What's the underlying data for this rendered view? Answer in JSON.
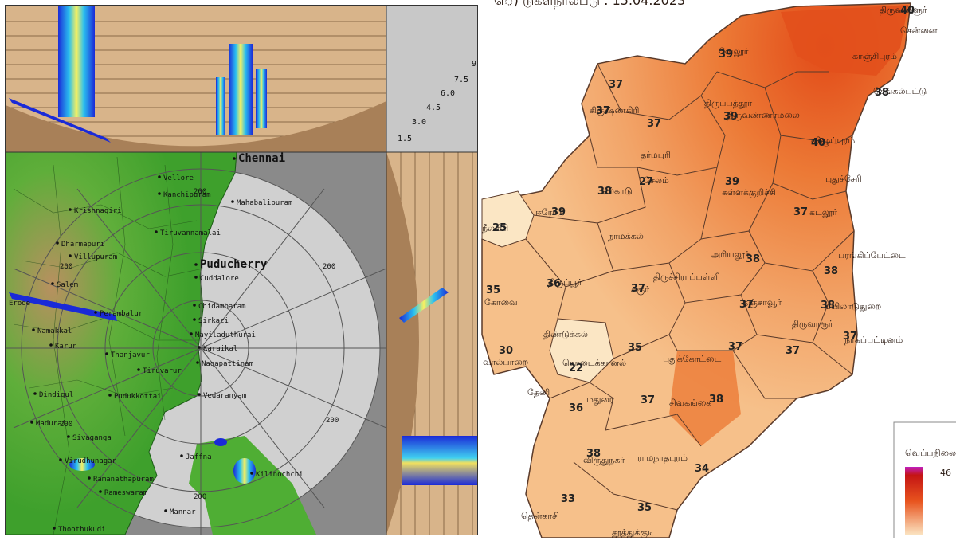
{
  "radar": {
    "range_rings": [
      "200",
      "200",
      "200",
      "200",
      "200",
      "200"
    ],
    "height_scale": [
      "9",
      "7.5",
      "6.0",
      "4.5",
      "3.0",
      "1.5"
    ],
    "places": [
      {
        "name": "Chennai",
        "big": true
      },
      {
        "name": "Mahabalipuram"
      },
      {
        "name": "Vellore"
      },
      {
        "name": "Kanchipuram"
      },
      {
        "name": "Krishnagiri"
      },
      {
        "name": "Tiruvannamalai"
      },
      {
        "name": "Dharmapuri"
      },
      {
        "name": "Villupuram"
      },
      {
        "name": "Puducherry",
        "big": true
      },
      {
        "name": "Cuddalore"
      },
      {
        "name": "Salem"
      },
      {
        "name": "Erode"
      },
      {
        "name": "Perambalur"
      },
      {
        "name": "Chidambaram"
      },
      {
        "name": "Sirkazi"
      },
      {
        "name": "Mayiladuthurai"
      },
      {
        "name": "Karaikal"
      },
      {
        "name": "Namakkal"
      },
      {
        "name": "Karur"
      },
      {
        "name": "Thanjavur"
      },
      {
        "name": "Nagapattinam"
      },
      {
        "name": "Tiruvarur"
      },
      {
        "name": "Dindigul"
      },
      {
        "name": "Pudukkottai"
      },
      {
        "name": "Vedaranyam"
      },
      {
        "name": "Madurai"
      },
      {
        "name": "Sivaganga"
      },
      {
        "name": "Virudhunagar"
      },
      {
        "name": "Jaffna"
      },
      {
        "name": "Kilinochchi"
      },
      {
        "name": "Ramanathapuram"
      },
      {
        "name": "Rameswaram"
      },
      {
        "name": "Mannar"
      },
      {
        "name": "Thoothukudi"
      }
    ]
  },
  "temperature_map": {
    "title_partial": "ெ) டுகளநாலபடு : 15.04.2023",
    "legend_title": "வெப்பநிலை",
    "legend_max": "46",
    "colors": {
      "low": "#fbe6c4",
      "mid": "#f2a468",
      "high": "#e8541e",
      "top": "#c41414",
      "legend_top": "#c020c0"
    },
    "districts": [
      {
        "name": "சென்னை"
      },
      {
        "name": "திருவள்ளூர்",
        "temp": "40"
      },
      {
        "name": "காஞ்சிபுரம்"
      },
      {
        "name": "செங்கல்பட்டு",
        "temp": "38"
      },
      {
        "name": "வேலூர்",
        "temp": "39"
      },
      {
        "name": "திருப்பத்தூர்",
        "temp": "37"
      },
      {
        "name": "கிருஷ்ணகிரி",
        "temp": "37"
      },
      {
        "name": "திருவண்ணாமலை",
        "temp": "39"
      },
      {
        "name": "விழுப்புரம்",
        "temp": "40"
      },
      {
        "name": "தர்மபுரி",
        "temp": "37"
      },
      {
        "name": "புதுச்சேரி"
      },
      {
        "name": "சேலம்",
        "temp": "27"
      },
      {
        "name": "ஏற்காடு",
        "temp": "38"
      },
      {
        "name": "கள்ளக்குறிச்சி",
        "temp": "39"
      },
      {
        "name": "ஈரோடு",
        "temp": "39"
      },
      {
        "name": "நீலகிரி",
        "temp": "25"
      },
      {
        "name": "நாமக்கல்"
      },
      {
        "name": "கடலூர்",
        "temp": "37"
      },
      {
        "name": "அரியலூர்",
        "temp": "38"
      },
      {
        "name": "பரங்கிப்பேட்டை",
        "temp": "38"
      },
      {
        "name": "திருப்பூர்",
        "temp": "36"
      },
      {
        "name": "கோவை",
        "temp": "35"
      },
      {
        "name": "கரூர்",
        "temp": "37"
      },
      {
        "name": "திருச்சிராப்பள்ளி"
      },
      {
        "name": "தஞ்சாவூர்",
        "temp": "37"
      },
      {
        "name": "மயிலாடுதுறை",
        "temp": "38"
      },
      {
        "name": "திருவாரூர்",
        "temp": "37"
      },
      {
        "name": "நாகப்பட்டினம்",
        "temp": "37"
      },
      {
        "name": "திண்டுக்கல்",
        "temp": "35"
      },
      {
        "name": "கொடைக்கானல்",
        "temp": "22"
      },
      {
        "name": "புதுக்கோட்டை",
        "temp": "37"
      },
      {
        "name": "வால்பாறை",
        "temp": "30"
      },
      {
        "name": "தேனி",
        "temp": "36"
      },
      {
        "name": "மதுரை",
        "temp": "37"
      },
      {
        "name": "சிவகங்கை",
        "temp": "38"
      },
      {
        "name": "விருதுநகர்",
        "temp": "38"
      },
      {
        "name": "ராமநாதபுரம்",
        "temp": "34"
      },
      {
        "name": "தென்காசி",
        "temp": "33"
      },
      {
        "name": "தூத்துக்குடி",
        "temp": "35"
      }
    ]
  }
}
